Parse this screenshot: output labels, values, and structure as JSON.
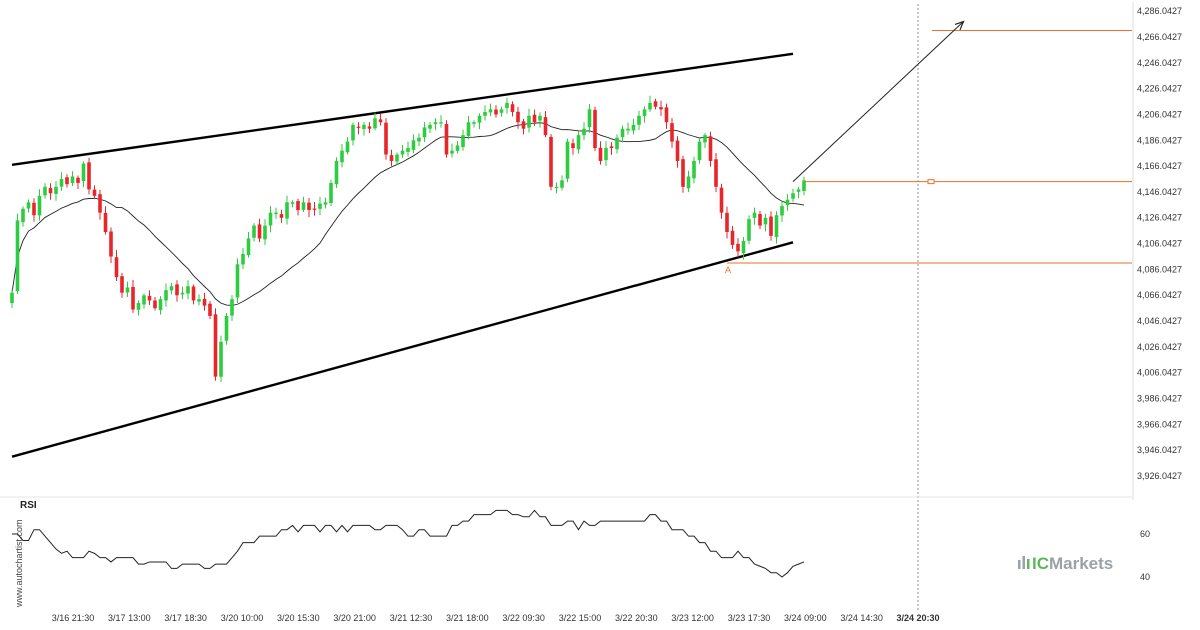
{
  "chart_data": [
    {
      "type": "candlestick",
      "title": "",
      "ylim": [
        3916,
        4290
      ],
      "y_ticks": [
        "4,286.0427",
        "4,266.0427",
        "4,246.0427",
        "4,226.0427",
        "4,206.0427",
        "4,186.0427",
        "4,166.0427",
        "4,146.0427",
        "4,126.0427",
        "4,106.0427",
        "4,086.0427",
        "4,066.0427",
        "4,046.0427",
        "4,026.0427",
        "4,006.0427",
        "3,986.0427",
        "3,966.0427",
        "3,946.0427",
        "3,926.0427"
      ],
      "x_ticks": [
        "3/16 21:30",
        "3/17 13:00",
        "3/17 18:30",
        "3/20 10:00",
        "3/20 15:30",
        "3/20 21:00",
        "3/21 12:30",
        "3/21 18:00",
        "3/22 09:30",
        "3/22 15:00",
        "3/22 20:30",
        "3/23 12:00",
        "3/23 17:30",
        "3/24 09:00",
        "3/24 14:30",
        "3/24 20:30"
      ],
      "current_x_label": "3/24 20:30",
      "close": [
        4068,
        4124,
        4133,
        4138,
        4128,
        4143,
        4150,
        4145,
        4150,
        4156,
        4152,
        4158,
        4153,
        4168,
        4148,
        4143,
        4130,
        4115,
        4096,
        4080,
        4068,
        4072,
        4055,
        4060,
        4066,
        4062,
        4056,
        4063,
        4070,
        4073,
        4066,
        4068,
        4073,
        4062,
        4063,
        4058,
        4050,
        4003,
        4030,
        4050,
        4063,
        4090,
        4098,
        4110,
        4120,
        4110,
        4120,
        4130,
        4130,
        4126,
        4138,
        4138,
        4132,
        4138,
        4132,
        4133,
        4137,
        4138,
        4153,
        4170,
        4178,
        4185,
        4198,
        4196,
        4198,
        4195,
        4203,
        4200,
        4175,
        4170,
        4175,
        4178,
        4180,
        4186,
        4188,
        4196,
        4198,
        4200,
        4200,
        4175,
        4178,
        4182,
        4190,
        4200,
        4200,
        4205,
        4208,
        4210,
        4206,
        4210,
        4215,
        4208,
        4200,
        4195,
        4205,
        4200,
        4205,
        4190,
        4150,
        4150,
        4155,
        4185,
        4180,
        4190,
        4195,
        4210,
        4180,
        4170,
        4180,
        4180,
        4188,
        4195,
        4195,
        4198,
        4205,
        4210,
        4215,
        4212,
        4210,
        4200,
        4185,
        4170,
        4150,
        4158,
        4170,
        4185,
        4190,
        4170,
        4150,
        4130,
        4115,
        4105,
        4100,
        4108,
        4125,
        4130,
        4120,
        4126,
        4112,
        4128,
        4135,
        4140,
        4145,
        4148,
        4155
      ],
      "upper_channel": {
        "start": [
          0,
          4167
        ],
        "end": [
          142,
          4253
        ]
      },
      "lower_channel": {
        "start": [
          0,
          3941
        ],
        "end": [
          142,
          4107
        ]
      },
      "target_level": 4271,
      "entry_level": 4154,
      "support_level": 4091,
      "point_label": "A",
      "point_index": 130,
      "projection": {
        "from": [
          142,
          4154
        ],
        "to": [
          173,
          4278
        ]
      }
    },
    {
      "type": "line",
      "name": "RSI",
      "title": "RSI",
      "ylim": [
        35,
        75
      ],
      "y_ticks": [
        60,
        40
      ],
      "values": [
        60,
        60,
        57,
        57,
        62,
        62,
        59,
        56,
        53,
        51,
        52,
        49,
        49,
        49,
        52,
        51,
        49,
        49,
        47,
        49,
        49,
        49,
        49,
        46,
        46,
        47,
        47,
        47,
        47,
        44,
        44,
        46,
        46,
        46,
        46,
        44,
        44,
        46,
        46,
        46,
        49,
        52,
        56,
        56,
        56,
        59,
        59,
        59,
        59,
        62,
        62,
        64,
        61,
        64,
        64,
        64,
        61,
        64,
        64,
        61,
        64,
        61,
        64,
        64,
        64,
        64,
        62,
        62,
        64,
        64,
        64,
        62,
        59,
        59,
        62,
        62,
        59,
        59,
        59,
        59,
        64,
        64,
        66,
        66,
        69,
        69,
        69,
        69,
        71,
        71,
        71,
        69,
        69,
        68,
        68,
        71,
        68,
        68,
        64,
        64,
        64,
        66,
        66,
        62,
        66,
        64,
        64,
        66,
        66,
        66,
        66,
        66,
        66,
        66,
        66,
        66,
        69,
        69,
        66,
        66,
        62,
        62,
        62,
        59,
        59,
        56,
        56,
        52,
        52,
        49,
        49,
        49,
        52,
        49,
        49,
        46,
        45,
        44,
        42,
        42,
        40,
        42,
        45,
        46,
        47
      ],
      "line_color": "#222222"
    }
  ],
  "colors": {
    "up": "#2ecc40",
    "down": "#e8252a",
    "channel": "#000000",
    "moving_average": "#222222",
    "levels": "#e8702a",
    "arrow": "#222222",
    "watermark": "#444444",
    "brand": "#9aa2a8",
    "brand_mark": "#5cb85c"
  },
  "watermark": "www.autochartist.com",
  "brand": {
    "prefix": "IC",
    "name": "Markets",
    "icon": "bars-logo-icon"
  }
}
